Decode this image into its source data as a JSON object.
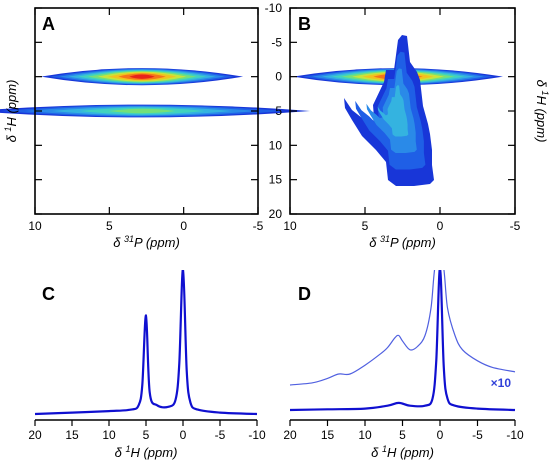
{
  "chart_data": [
    {
      "panel": "A",
      "type": "heatmap",
      "xlabel": "δ 31P (ppm)",
      "ylabel": "δ 1H (ppm)",
      "xlim": [
        10,
        -5
      ],
      "ylim": [
        20,
        -10
      ],
      "xticks": [
        "10",
        "5",
        "0",
        "-5"
      ],
      "yticks": [],
      "peaks": [
        {
          "x": 2.8,
          "y": 0.0,
          "x_halfwidth": 6.8,
          "y_halfwidth": 0.6
        },
        {
          "x": 2.8,
          "y": 5.0,
          "x_halfwidth": 11.3,
          "y_halfwidth": 0.45
        }
      ]
    },
    {
      "panel": "B",
      "type": "heatmap",
      "xlabel": "δ 31P (ppm)",
      "ylabel": "δ 1H (ppm)",
      "xlim": [
        10,
        -5
      ],
      "ylim": [
        20,
        -10
      ],
      "xticks": [
        "10",
        "5",
        "0",
        "-5"
      ],
      "yticks": [
        "-10",
        "-5",
        "0",
        "5",
        "10",
        "15",
        "20"
      ],
      "peaks": [
        {
          "x": 2.8,
          "y": 0.0,
          "x_halfwidth": 7.0,
          "y_halfwidth": 0.6
        },
        {
          "x": 3.0,
          "y": 5.0,
          "x_halfwidth": 3.6,
          "y_halfwidth": 9.5
        }
      ]
    },
    {
      "panel": "C",
      "type": "line",
      "xlabel": "δ 1H (ppm)",
      "xlim": [
        20,
        -10
      ],
      "xticks": [
        "20",
        "15",
        "10",
        "5",
        "0",
        "-5",
        "-10"
      ],
      "series": [
        {
          "x": [
            20,
            15,
            10,
            7,
            6,
            5.5,
            5.0,
            4.5,
            3.5,
            2,
            1,
            0.5,
            0,
            -0.5,
            -1,
            -2,
            -5,
            -10
          ],
          "y": [
            0.0,
            0.01,
            0.02,
            0.03,
            0.06,
            0.2,
            0.68,
            0.15,
            0.06,
            0.05,
            0.1,
            0.35,
            1.0,
            0.3,
            0.08,
            0.03,
            0.01,
            0.0
          ]
        }
      ]
    },
    {
      "panel": "D",
      "type": "line",
      "xlabel": "δ 1H (ppm)",
      "xlim": [
        20,
        -10
      ],
      "xticks": [
        "20",
        "15",
        "10",
        "5",
        "0",
        "-5",
        "-10"
      ],
      "annotations": [
        "×10"
      ],
      "series": [
        {
          "x": [
            20,
            15,
            10,
            7,
            5.5,
            4,
            2,
            1,
            0.5,
            0,
            -0.5,
            -1,
            -2,
            -5,
            -10
          ],
          "y": [
            0.0,
            0.005,
            0.01,
            0.03,
            0.05,
            0.03,
            0.03,
            0.08,
            0.35,
            1.0,
            0.3,
            0.08,
            0.03,
            0.01,
            0.0
          ]
        },
        {
          "x": [
            20,
            17,
            15,
            13.5,
            12,
            10,
            8,
            7,
            6,
            5.5,
            5,
            4,
            3,
            2,
            1.2,
            0.6,
            -0.4,
            -1,
            -2,
            -3,
            -5,
            -7,
            -10
          ],
          "y": [
            0.1,
            0.12,
            0.16,
            0.2,
            0.2,
            0.28,
            0.38,
            0.44,
            0.53,
            0.55,
            0.5,
            0.42,
            0.45,
            0.55,
            0.8,
            1.2,
            1.2,
            0.8,
            0.55,
            0.42,
            0.32,
            0.26,
            0.22
          ]
        }
      ]
    }
  ]
}
